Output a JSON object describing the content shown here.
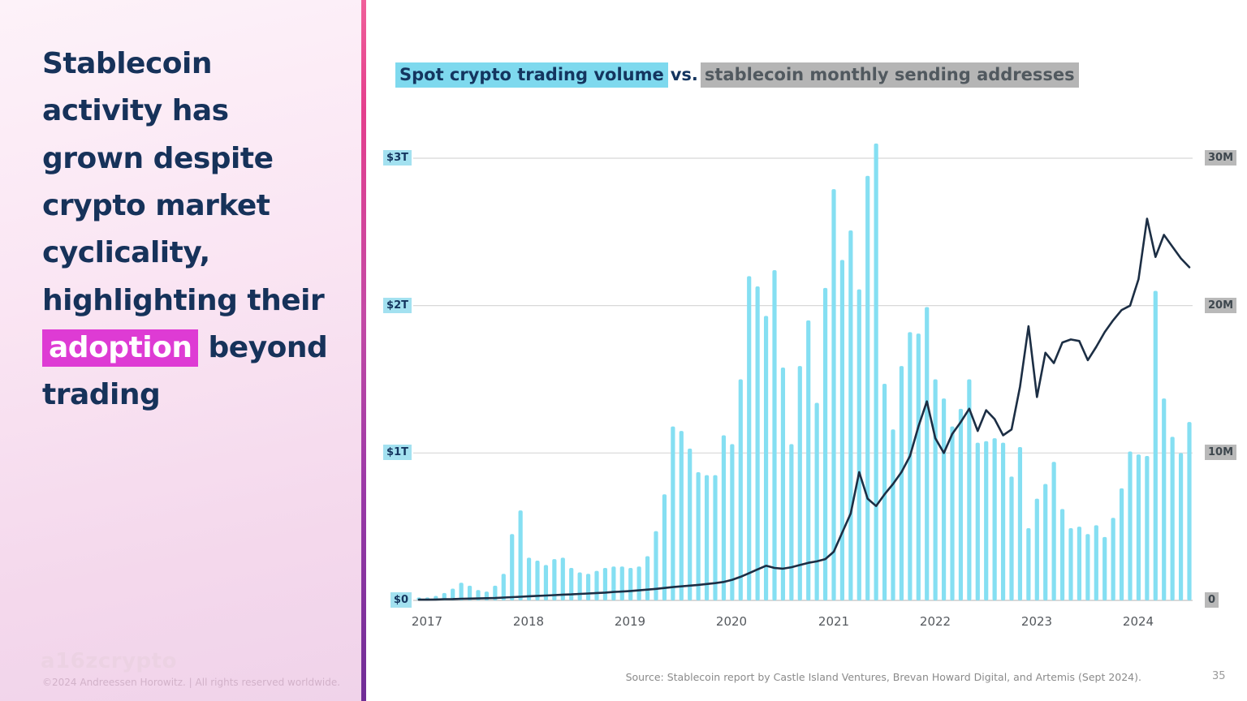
{
  "sidebar": {
    "headline": {
      "before": "Stablecoin activity has grown despite crypto market cyclicality, highlighting their ",
      "highlight": "adoption",
      "after": " beyond trading"
    },
    "logo": "a16zcrypto",
    "copyright": "©2024 Andreessen Horowitz. |  All rights reserved worldwide."
  },
  "footer": {
    "source": "Source: Stablecoin report by Castle Island Ventures, Brevan Howard Digital, and Artemis (Sept 2024).",
    "page_number": "35"
  },
  "chart_title": {
    "series1": "Spot crypto trading volume",
    "separator": "vs.",
    "series2": "stablecoin monthly sending addresses"
  },
  "colors": {
    "bar": "#85dff2",
    "line": "#1c2e44",
    "gridline": "#d8d8d8",
    "baseline": "#c2c2c2",
    "title_blue_bg": "#7ed9ee",
    "title_gray_bg": "#b5b5b5",
    "highlight_magenta": "#de3bd4",
    "headline_navy": "#16325a"
  },
  "chart_data": {
    "type": "bar",
    "subtype": "bar-plus-line-dual-axis",
    "x_unit": "month",
    "x_start": "2017-01",
    "x_end": "2024-08",
    "x_tick_labels": [
      "2017",
      "2018",
      "2019",
      "2020",
      "2021",
      "2022",
      "2023",
      "2024"
    ],
    "left_axis": {
      "label": "Spot crypto trading volume (USD)",
      "ticks": [
        "$0",
        "$1T",
        "$2T",
        "$3T"
      ],
      "tick_values": [
        0,
        1,
        2,
        3
      ],
      "unit": "trillion USD",
      "range": [
        0,
        3.3
      ]
    },
    "right_axis": {
      "label": "Stablecoin monthly sending addresses",
      "ticks": [
        "0",
        "10M",
        "20M",
        "30M"
      ],
      "tick_values": [
        0,
        10,
        20,
        30
      ],
      "unit": "million addresses",
      "range": [
        0,
        33
      ]
    },
    "grid": true,
    "legend_position": "inline-title-highlights",
    "series": [
      {
        "name": "Spot crypto trading volume",
        "type": "bar",
        "axis": "left",
        "unit": "$T",
        "values": [
          0.02,
          0.02,
          0.03,
          0.05,
          0.08,
          0.12,
          0.1,
          0.07,
          0.06,
          0.1,
          0.18,
          0.45,
          0.61,
          0.29,
          0.27,
          0.24,
          0.28,
          0.29,
          0.22,
          0.19,
          0.18,
          0.2,
          0.22,
          0.23,
          0.23,
          0.22,
          0.23,
          0.3,
          0.47,
          0.72,
          1.18,
          1.15,
          1.03,
          0.87,
          0.85,
          0.85,
          1.12,
          1.06,
          1.5,
          2.2,
          2.13,
          1.93,
          2.24,
          1.58,
          1.06,
          1.59,
          1.9,
          1.34,
          2.12,
          2.79,
          2.31,
          2.51,
          2.11,
          2.88,
          3.1,
          1.47,
          1.16,
          1.59,
          1.82,
          1.81,
          1.99,
          1.5,
          1.37,
          1.18,
          1.3,
          1.5,
          1.07,
          1.08,
          1.1,
          1.07,
          0.84,
          1.04,
          0.49,
          0.69,
          0.79,
          0.94,
          0.62,
          0.49,
          0.5,
          0.45,
          0.51,
          0.43,
          0.56,
          0.76,
          1.01,
          0.99,
          0.98,
          2.1,
          1.37,
          1.11,
          1.0,
          1.21
        ]
      },
      {
        "name": "Stablecoin monthly sending addresses",
        "type": "line",
        "axis": "right",
        "unit": "M",
        "values": [
          0.05,
          0.05,
          0.06,
          0.08,
          0.09,
          0.11,
          0.12,
          0.13,
          0.15,
          0.16,
          0.19,
          0.22,
          0.25,
          0.28,
          0.31,
          0.33,
          0.36,
          0.39,
          0.41,
          0.44,
          0.47,
          0.5,
          0.53,
          0.57,
          0.6,
          0.64,
          0.68,
          0.73,
          0.78,
          0.84,
          0.9,
          0.95,
          1.0,
          1.05,
          1.11,
          1.17,
          1.25,
          1.4,
          1.6,
          1.85,
          2.1,
          2.35,
          2.2,
          2.15,
          2.25,
          2.4,
          2.55,
          2.65,
          2.8,
          3.3,
          4.6,
          5.9,
          8.7,
          6.9,
          6.4,
          7.2,
          7.9,
          8.7,
          9.8,
          11.8,
          13.5,
          11.0,
          10.0,
          11.3,
          12.1,
          13.0,
          11.5,
          12.9,
          12.3,
          11.2,
          11.6,
          14.5,
          18.6,
          13.8,
          16.8,
          16.1,
          17.5,
          17.7,
          17.6,
          16.3,
          17.2,
          18.2,
          19.0,
          19.7,
          20.0,
          21.8,
          25.9,
          23.3,
          24.8,
          24.0,
          23.2,
          22.6
        ]
      }
    ]
  },
  "axis_chip_labels": {
    "left": [
      "$3T",
      "$2T",
      "$1T",
      "$0"
    ],
    "right": [
      "30M",
      "20M",
      "10M",
      "0"
    ]
  }
}
